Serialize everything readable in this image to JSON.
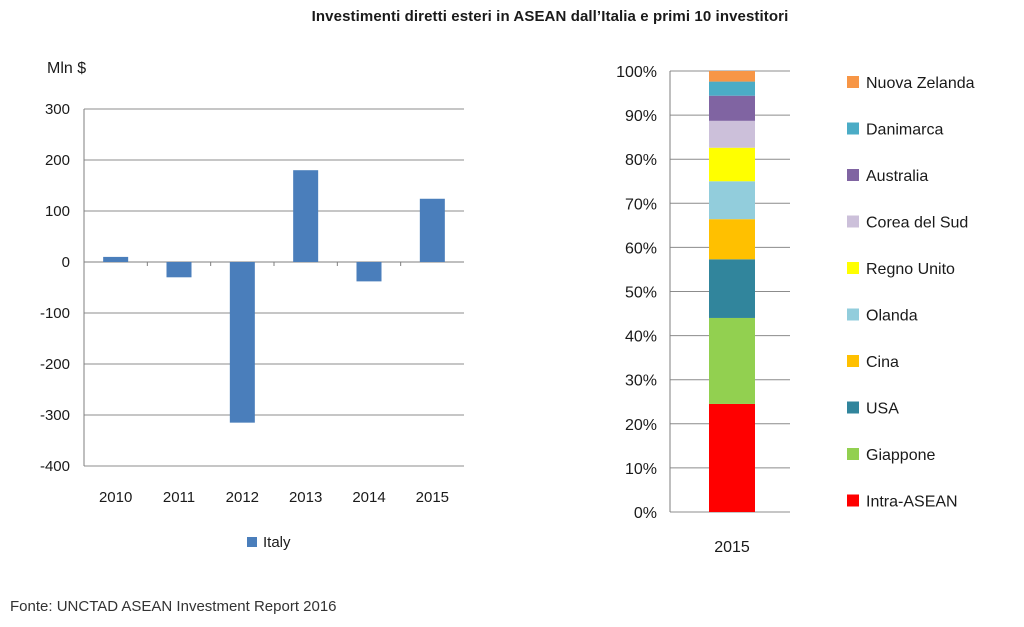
{
  "title": "Investimenti diretti esteri in ASEAN dall’Italia e primi 10 investitori",
  "source": "Fonte: UNCTAD ASEAN Investment Report 2016",
  "colors": {
    "italy": "#4a7ebb",
    "grid": "#8c8c8c",
    "axis": "#7f7f7f"
  },
  "chart_data": [
    {
      "type": "bar",
      "ylabel": "Mln $",
      "categories": [
        "2010",
        "2011",
        "2012",
        "2013",
        "2014",
        "2015"
      ],
      "series": [
        {
          "name": "Italy",
          "values": [
            10,
            -30,
            -315,
            180,
            -38,
            124
          ]
        }
      ],
      "ylim": [
        -400,
        300
      ],
      "yticks": [
        {
          "value": 300,
          "label": "300"
        },
        {
          "value": 200,
          "label": "200"
        },
        {
          "value": 100,
          "label": "100"
        },
        {
          "value": 0,
          "label": "0"
        },
        {
          "value": -100,
          "label": "-100"
        },
        {
          "value": -200,
          "label": "-200"
        },
        {
          "value": -300,
          "label": "-300"
        },
        {
          "value": -400,
          "label": "-400"
        }
      ],
      "grid": true,
      "legend": "bottom"
    },
    {
      "type": "bar",
      "stacked": "percent",
      "categories": [
        "2015"
      ],
      "ylim": [
        0,
        100
      ],
      "yticks": [
        "0%",
        "10%",
        "20%",
        "30%",
        "40%",
        "50%",
        "60%",
        "70%",
        "80%",
        "90%",
        "100%"
      ],
      "grid": true,
      "legend": "right",
      "series": [
        {
          "name": "Intra-ASEAN",
          "values": [
            24.5
          ],
          "color": "#ff0000"
        },
        {
          "name": "Giappone",
          "values": [
            19.5
          ],
          "color": "#92d050"
        },
        {
          "name": "USA",
          "values": [
            13.3
          ],
          "color": "#31859c"
        },
        {
          "name": "Cina",
          "values": [
            9.1
          ],
          "color": "#ffc000"
        },
        {
          "name": "Olanda",
          "values": [
            8.6
          ],
          "color": "#92cddc"
        },
        {
          "name": "Regno Unito",
          "values": [
            7.6
          ],
          "color": "#ffff00"
        },
        {
          "name": "Corea del Sud",
          "values": [
            6.1
          ],
          "color": "#ccc0da"
        },
        {
          "name": "Australia",
          "values": [
            5.7
          ],
          "color": "#8064a2"
        },
        {
          "name": "Danimarca",
          "values": [
            3.2
          ],
          "color": "#4bacc6"
        },
        {
          "name": "Nuova Zelanda",
          "values": [
            2.4
          ],
          "color": "#f79646"
        }
      ]
    }
  ]
}
